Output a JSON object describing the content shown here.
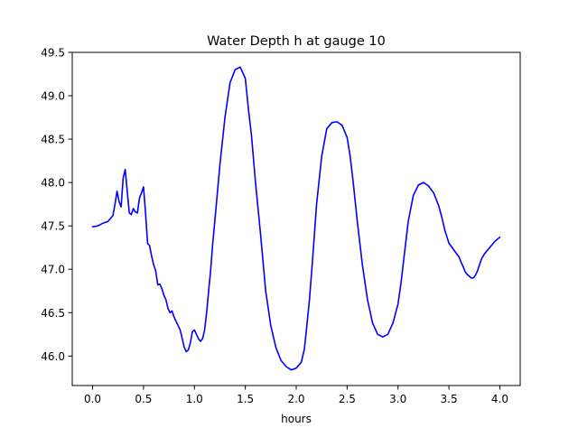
{
  "chart_data": {
    "type": "line",
    "title": "Water Depth h at gauge 10",
    "xlabel": "hours",
    "ylabel": "",
    "xlim": [
      -0.2,
      4.2
    ],
    "ylim": [
      45.66,
      49.5
    ],
    "xticks": [
      0.0,
      0.5,
      1.0,
      1.5,
      2.0,
      2.5,
      3.0,
      3.5,
      4.0
    ],
    "xtick_labels": [
      "0.0",
      "0.5",
      "1.0",
      "1.5",
      "2.0",
      "2.5",
      "3.0",
      "3.5",
      "4.0"
    ],
    "yticks": [
      46.0,
      46.5,
      47.0,
      47.5,
      48.0,
      48.5,
      49.0,
      49.5
    ],
    "ytick_labels": [
      "46.0",
      "46.5",
      "47.0",
      "47.5",
      "48.0",
      "48.5",
      "49.0",
      "49.5"
    ],
    "grid": false,
    "legend": false,
    "series": [
      {
        "color": "#0000ff",
        "x": [
          0.0,
          0.05,
          0.1,
          0.15,
          0.2,
          0.22,
          0.24,
          0.26,
          0.28,
          0.3,
          0.32,
          0.34,
          0.36,
          0.38,
          0.4,
          0.42,
          0.44,
          0.46,
          0.48,
          0.5,
          0.52,
          0.54,
          0.56,
          0.58,
          0.6,
          0.62,
          0.64,
          0.66,
          0.68,
          0.7,
          0.72,
          0.74,
          0.76,
          0.78,
          0.8,
          0.82,
          0.84,
          0.86,
          0.88,
          0.9,
          0.92,
          0.94,
          0.96,
          0.98,
          1.0,
          1.02,
          1.04,
          1.06,
          1.08,
          1.1,
          1.12,
          1.14,
          1.16,
          1.18,
          1.2,
          1.25,
          1.3,
          1.35,
          1.4,
          1.45,
          1.5,
          1.53,
          1.56,
          1.6,
          1.65,
          1.7,
          1.75,
          1.8,
          1.85,
          1.9,
          1.95,
          2.0,
          2.05,
          2.08,
          2.1,
          2.13,
          2.16,
          2.2,
          2.25,
          2.3,
          2.35,
          2.4,
          2.45,
          2.5,
          2.53,
          2.56,
          2.6,
          2.65,
          2.7,
          2.75,
          2.8,
          2.85,
          2.9,
          2.95,
          3.0,
          3.03,
          3.06,
          3.1,
          3.15,
          3.2,
          3.25,
          3.3,
          3.35,
          3.4,
          3.43,
          3.46,
          3.5,
          3.55,
          3.6,
          3.62,
          3.64,
          3.66,
          3.68,
          3.7,
          3.72,
          3.74,
          3.76,
          3.78,
          3.8,
          3.82,
          3.85,
          3.9,
          3.95,
          4.0
        ],
        "y": [
          47.49,
          47.5,
          47.53,
          47.55,
          47.62,
          47.75,
          47.9,
          47.78,
          47.72,
          48.05,
          48.15,
          47.9,
          47.65,
          47.63,
          47.7,
          47.66,
          47.65,
          47.82,
          47.88,
          47.95,
          47.65,
          47.3,
          47.27,
          47.15,
          47.05,
          46.98,
          46.82,
          46.83,
          46.78,
          46.7,
          46.65,
          46.55,
          46.5,
          46.52,
          46.45,
          46.4,
          46.35,
          46.3,
          46.2,
          46.1,
          46.05,
          46.07,
          46.15,
          46.28,
          46.3,
          46.25,
          46.2,
          46.17,
          46.2,
          46.3,
          46.5,
          46.75,
          47.0,
          47.3,
          47.55,
          48.2,
          48.75,
          49.15,
          49.3,
          49.33,
          49.2,
          48.85,
          48.55,
          48.0,
          47.4,
          46.75,
          46.35,
          46.1,
          45.95,
          45.88,
          45.84,
          45.86,
          45.93,
          46.08,
          46.3,
          46.65,
          47.1,
          47.75,
          48.3,
          48.62,
          48.69,
          48.7,
          48.66,
          48.52,
          48.3,
          48.0,
          47.55,
          47.05,
          46.65,
          46.38,
          46.25,
          46.22,
          46.25,
          46.38,
          46.6,
          46.85,
          47.15,
          47.55,
          47.85,
          47.97,
          48.0,
          47.96,
          47.88,
          47.73,
          47.6,
          47.45,
          47.3,
          47.22,
          47.14,
          47.08,
          47.03,
          46.97,
          46.94,
          46.92,
          46.9,
          46.9,
          46.93,
          46.98,
          47.05,
          47.12,
          47.18,
          47.25,
          47.32,
          47.37
        ]
      }
    ]
  }
}
